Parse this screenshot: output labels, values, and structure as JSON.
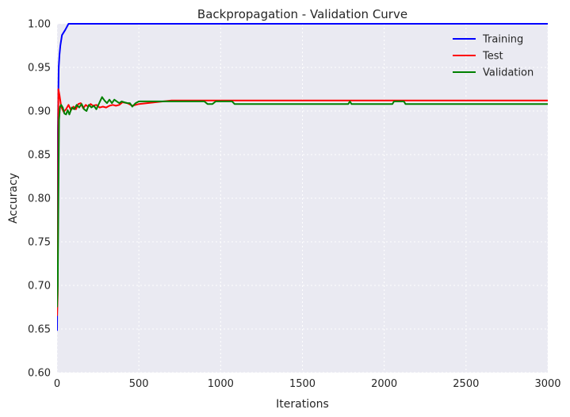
{
  "chart_data": {
    "type": "line",
    "title": "Backpropagation - Validation Curve",
    "xlabel": "Iterations",
    "ylabel": "Accuracy",
    "xlim": [
      0,
      3000
    ],
    "ylim": [
      0.6,
      1.0
    ],
    "xticks": [
      0,
      500,
      1000,
      1500,
      2000,
      2500,
      3000
    ],
    "yticks": [
      "0.60",
      "0.65",
      "0.70",
      "0.75",
      "0.80",
      "0.85",
      "0.90",
      "0.95",
      "1.00"
    ],
    "grid": true,
    "legend_position": "top-right",
    "background_color": "#eaeaf2",
    "series": [
      {
        "name": "Training",
        "color": "#0000ff",
        "points": [
          [
            0,
            0.648
          ],
          [
            5,
            0.88
          ],
          [
            10,
            0.95
          ],
          [
            15,
            0.965
          ],
          [
            20,
            0.975
          ],
          [
            30,
            0.987
          ],
          [
            50,
            0.993
          ],
          [
            70,
            1.0
          ],
          [
            3000,
            1.0
          ]
        ]
      },
      {
        "name": "Test",
        "color": "#ff0000",
        "points": [
          [
            0,
            0.665
          ],
          [
            4,
            0.69
          ],
          [
            8,
            0.925
          ],
          [
            15,
            0.918
          ],
          [
            25,
            0.905
          ],
          [
            40,
            0.899
          ],
          [
            55,
            0.902
          ],
          [
            70,
            0.907
          ],
          [
            85,
            0.901
          ],
          [
            100,
            0.905
          ],
          [
            115,
            0.902
          ],
          [
            130,
            0.908
          ],
          [
            145,
            0.909
          ],
          [
            160,
            0.903
          ],
          [
            175,
            0.907
          ],
          [
            190,
            0.905
          ],
          [
            205,
            0.908
          ],
          [
            220,
            0.906
          ],
          [
            240,
            0.907
          ],
          [
            260,
            0.904
          ],
          [
            280,
            0.905
          ],
          [
            300,
            0.904
          ],
          [
            320,
            0.906
          ],
          [
            340,
            0.907
          ],
          [
            360,
            0.906
          ],
          [
            380,
            0.907
          ],
          [
            400,
            0.91
          ],
          [
            430,
            0.909
          ],
          [
            460,
            0.906
          ],
          [
            480,
            0.907
          ],
          [
            500,
            0.908
          ],
          [
            600,
            0.91
          ],
          [
            700,
            0.912
          ],
          [
            3000,
            0.912
          ]
        ]
      },
      {
        "name": "Validation",
        "color": "#008000",
        "points": [
          [
            0,
            0.675
          ],
          [
            4,
            0.7
          ],
          [
            8,
            0.8
          ],
          [
            12,
            0.89
          ],
          [
            18,
            0.905
          ],
          [
            25,
            0.907
          ],
          [
            35,
            0.904
          ],
          [
            45,
            0.897
          ],
          [
            55,
            0.896
          ],
          [
            65,
            0.901
          ],
          [
            75,
            0.896
          ],
          [
            90,
            0.904
          ],
          [
            105,
            0.902
          ],
          [
            120,
            0.907
          ],
          [
            135,
            0.904
          ],
          [
            150,
            0.908
          ],
          [
            165,
            0.902
          ],
          [
            180,
            0.9
          ],
          [
            195,
            0.907
          ],
          [
            210,
            0.904
          ],
          [
            225,
            0.906
          ],
          [
            240,
            0.902
          ],
          [
            260,
            0.91
          ],
          [
            275,
            0.916
          ],
          [
            290,
            0.912
          ],
          [
            305,
            0.909
          ],
          [
            320,
            0.913
          ],
          [
            335,
            0.909
          ],
          [
            350,
            0.913
          ],
          [
            365,
            0.911
          ],
          [
            380,
            0.909
          ],
          [
            395,
            0.911
          ],
          [
            410,
            0.91
          ],
          [
            430,
            0.909
          ],
          [
            445,
            0.909
          ],
          [
            460,
            0.905
          ],
          [
            480,
            0.909
          ],
          [
            500,
            0.911
          ],
          [
            900,
            0.911
          ],
          [
            920,
            0.908
          ],
          [
            950,
            0.908
          ],
          [
            970,
            0.911
          ],
          [
            1070,
            0.911
          ],
          [
            1085,
            0.908
          ],
          [
            1780,
            0.908
          ],
          [
            1790,
            0.911
          ],
          [
            1800,
            0.908
          ],
          [
            2050,
            0.908
          ],
          [
            2060,
            0.911
          ],
          [
            2120,
            0.911
          ],
          [
            2130,
            0.908
          ],
          [
            3000,
            0.908
          ]
        ]
      }
    ]
  }
}
